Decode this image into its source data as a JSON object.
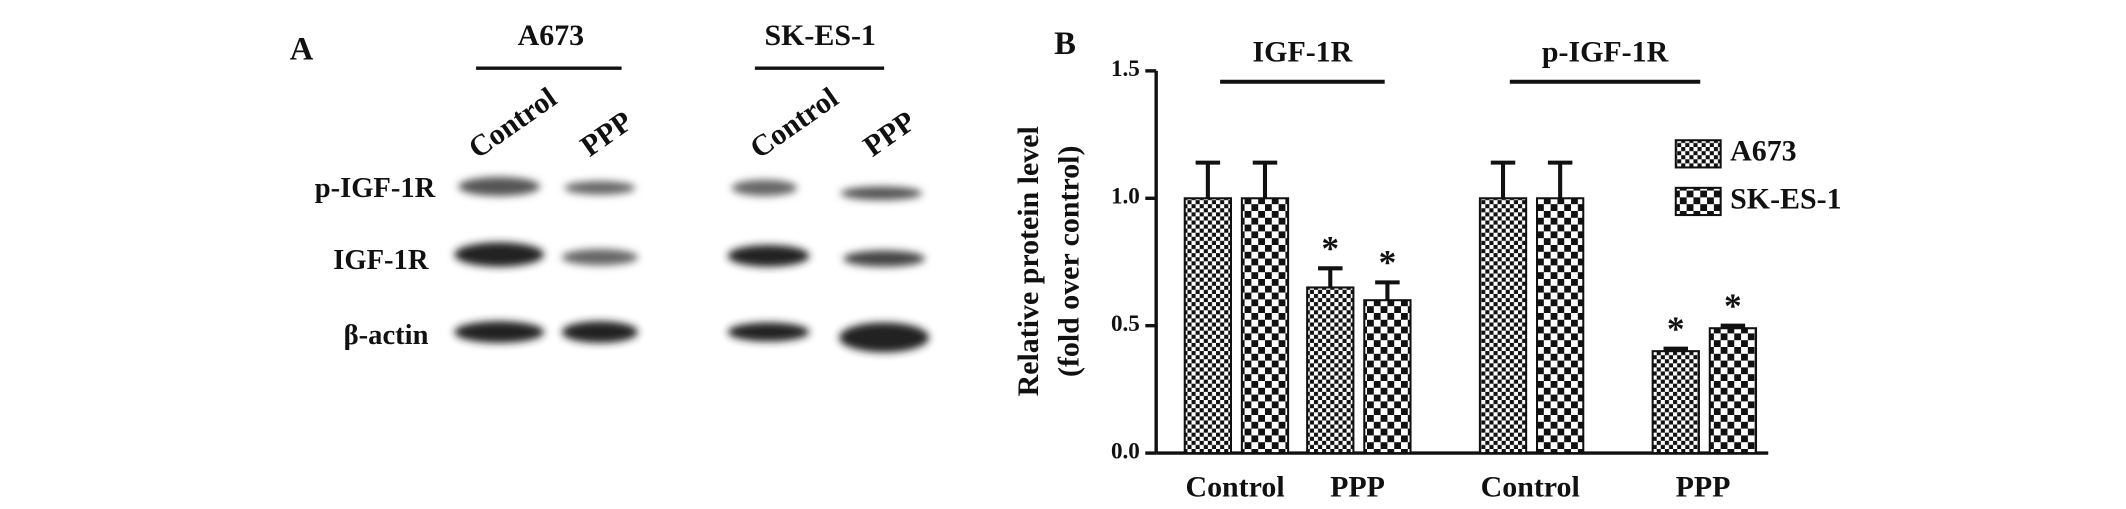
{
  "panel_a": {
    "label": "A",
    "cell_lines": [
      {
        "name": "A673",
        "conditions": [
          "Control",
          "PPP"
        ]
      },
      {
        "name": "SK-ES-1",
        "conditions": [
          "Control",
          "PPP"
        ]
      }
    ],
    "rows": [
      "p-IGF-1R",
      "IGF-1R",
      "β-actin"
    ]
  },
  "chart_data": {
    "type": "bar",
    "panel_label": "B",
    "ylabel": [
      "Relative protein level",
      "(fold over control)"
    ],
    "groups": [
      "IGF-1R",
      "p-IGF-1R"
    ],
    "categories": [
      "Control",
      "PPP",
      "Control",
      "PPP"
    ],
    "series": [
      {
        "name": "A673",
        "color": "#111111",
        "values": [
          1.0,
          0.65,
          1.0,
          0.4
        ],
        "errors": [
          0.14,
          0.075,
          0.14,
          0.01
        ],
        "markers": [
          null,
          "*",
          null,
          "*"
        ]
      },
      {
        "name": "SK-ES-1",
        "color": "#111111",
        "values": [
          1.0,
          0.6,
          1.0,
          0.49
        ],
        "errors": [
          0.14,
          0.07,
          0.14,
          0.01
        ],
        "markers": [
          null,
          "*",
          null,
          "*"
        ]
      }
    ],
    "ylim": [
      0,
      1.5
    ],
    "yticks": [
      {
        "value": 0,
        "label": "0.0"
      },
      {
        "value": 0.5,
        "label": "0.5"
      },
      {
        "value": 1.0,
        "label": "1.0"
      },
      {
        "value": 1.5,
        "label": "1.5"
      }
    ],
    "legend": "upper right"
  }
}
